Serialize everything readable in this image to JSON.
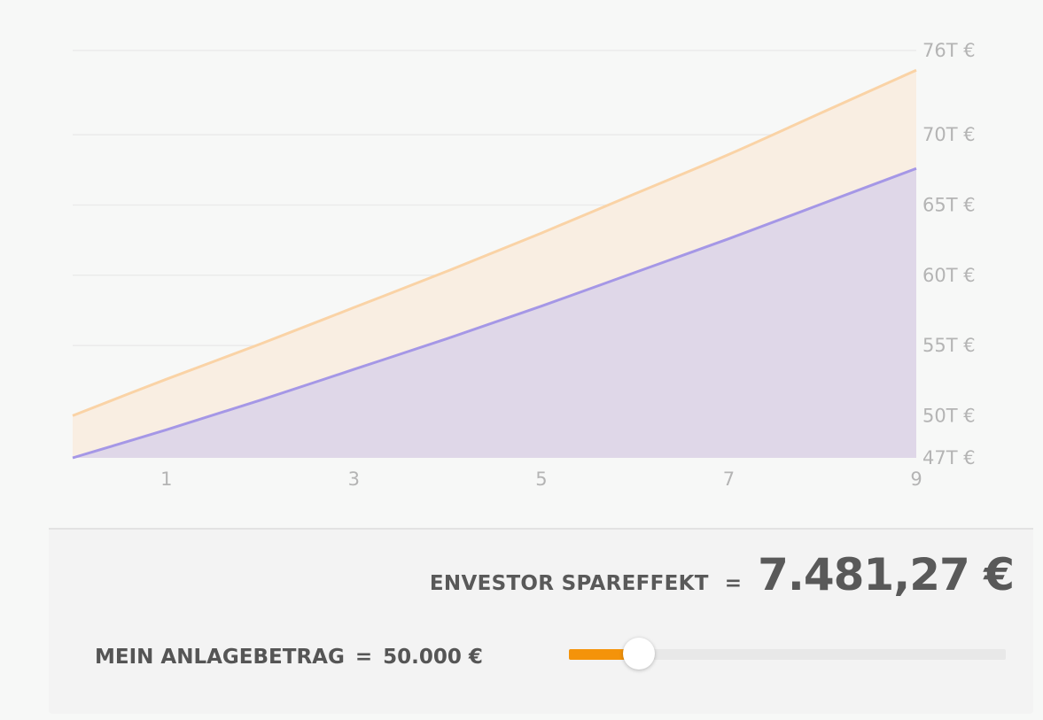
{
  "chart_data": {
    "type": "area",
    "x": [
      0,
      1,
      2,
      3,
      4,
      5,
      6,
      7,
      8,
      9
    ],
    "x_ticks": [
      "1",
      "3",
      "5",
      "7",
      "9"
    ],
    "x_tick_values": [
      1,
      3,
      5,
      7,
      9
    ],
    "xlim": [
      0,
      9
    ],
    "ylim": [
      47000,
      76000
    ],
    "y_ticks": [
      "76T €",
      "70T €",
      "65T €",
      "60T €",
      "55T €",
      "50T €",
      "47T €"
    ],
    "y_tick_values": [
      76000,
      70000,
      65000,
      60000,
      55000,
      50000,
      47000
    ],
    "grid": true,
    "series": [
      {
        "values": [
          50000,
          52600,
          55100,
          57700,
          60300,
          63000,
          65800,
          68600,
          71600,
          74600
        ],
        "color": "#fad3a6",
        "fill": "#f9eee2"
      },
      {
        "values": [
          47000,
          49000,
          51100,
          53300,
          55500,
          57800,
          60200,
          62600,
          65100,
          67600
        ],
        "color": "#a597e6",
        "fill": "#dfd7e8"
      }
    ]
  },
  "summary": {
    "effekt_label": "ENVESTOR SPAREFFEKT",
    "effekt_equals": "=",
    "effekt_value": "7.481,27 €",
    "amount_label": "MEIN ANLAGEBETRAG",
    "amount_equals": "=",
    "amount_value": "50.000 €"
  },
  "slider": {
    "fraction": 0.16,
    "accent_color": "#f4930a"
  }
}
